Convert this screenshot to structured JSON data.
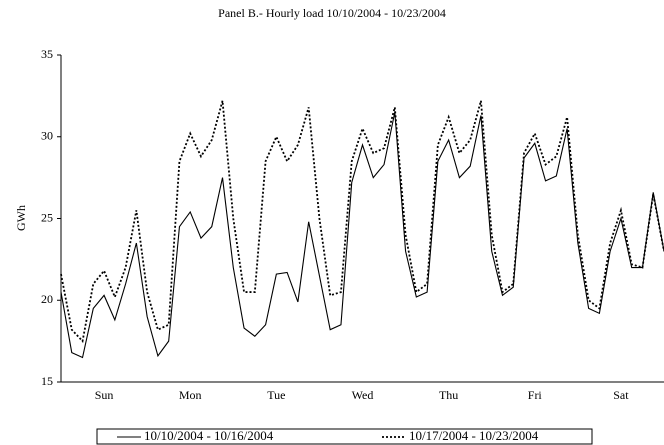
{
  "chart_data": {
    "type": "line",
    "title": "Panel B.- Hourly load 10/10/2004 - 10/23/2004",
    "ylabel": "GWh",
    "x": [
      0,
      3,
      6,
      9,
      12,
      15,
      18,
      21,
      24,
      27,
      30,
      33,
      36,
      39,
      42,
      45,
      48,
      51,
      54,
      57,
      60,
      63,
      66,
      69,
      72,
      75,
      78,
      81,
      84,
      87,
      90,
      93,
      96,
      99,
      102,
      105,
      108,
      111,
      114,
      117,
      120,
      123,
      126,
      129,
      132,
      135,
      138,
      141,
      144,
      147,
      150,
      153,
      156,
      159,
      162,
      165,
      168
    ],
    "xlim": [
      0,
      168
    ],
    "xticks": [
      {
        "value": 12,
        "label": "Sun"
      },
      {
        "value": 36,
        "label": "Mon"
      },
      {
        "value": 60,
        "label": "Tue"
      },
      {
        "value": 84,
        "label": "Wed"
      },
      {
        "value": 108,
        "label": "Thu"
      },
      {
        "value": 132,
        "label": "Fri"
      },
      {
        "value": 156,
        "label": "Sat"
      }
    ],
    "ylim": [
      15,
      35
    ],
    "yticks": [
      15,
      20,
      25,
      30,
      35
    ],
    "grid": false,
    "legend": "bottom",
    "series": [
      {
        "name": "10/10/2004 - 10/16/2004",
        "color": "#000000",
        "dash": "solid",
        "values": [
          20.5,
          16.8,
          16.5,
          19.5,
          20.3,
          18.8,
          21,
          23.5,
          19,
          16.6,
          17.5,
          24.5,
          25.4,
          23.8,
          24.5,
          27.5,
          22,
          18.3,
          17.8,
          18.5,
          21.6,
          21.7,
          19.9,
          24.8,
          21.5,
          18.2,
          18.5,
          27.2,
          29.5,
          27.5,
          28.3,
          31.5,
          23,
          20.2,
          20.5,
          28.5,
          29.8,
          27.5,
          28.2,
          31.3,
          23,
          20.3,
          20.8,
          28.7,
          29.6,
          27.3,
          27.6,
          30.5,
          23.5,
          19.5,
          19.2,
          23,
          25,
          22,
          22,
          26.6,
          23
        ]
      },
      {
        "name": "10/17/2004 - 10/23/2004",
        "color": "#000000",
        "dash": "dotted",
        "values": [
          21.6,
          18.2,
          17.5,
          21,
          21.8,
          20.2,
          22,
          25.5,
          20.5,
          18.2,
          18.5,
          28.5,
          30.2,
          28.8,
          29.8,
          32.2,
          25,
          20.5,
          20.5,
          28.5,
          30,
          28.5,
          29.5,
          31.8,
          25,
          20.3,
          20.5,
          28.5,
          30.5,
          29,
          29.3,
          31.8,
          24,
          20.5,
          21,
          29.5,
          31.2,
          29,
          29.8,
          32.2,
          24,
          20.5,
          21,
          29,
          30.2,
          28.3,
          28.8,
          31.2,
          24,
          20,
          19.5,
          23.5,
          25.5,
          22.2,
          22,
          26.5,
          23
        ]
      }
    ]
  }
}
